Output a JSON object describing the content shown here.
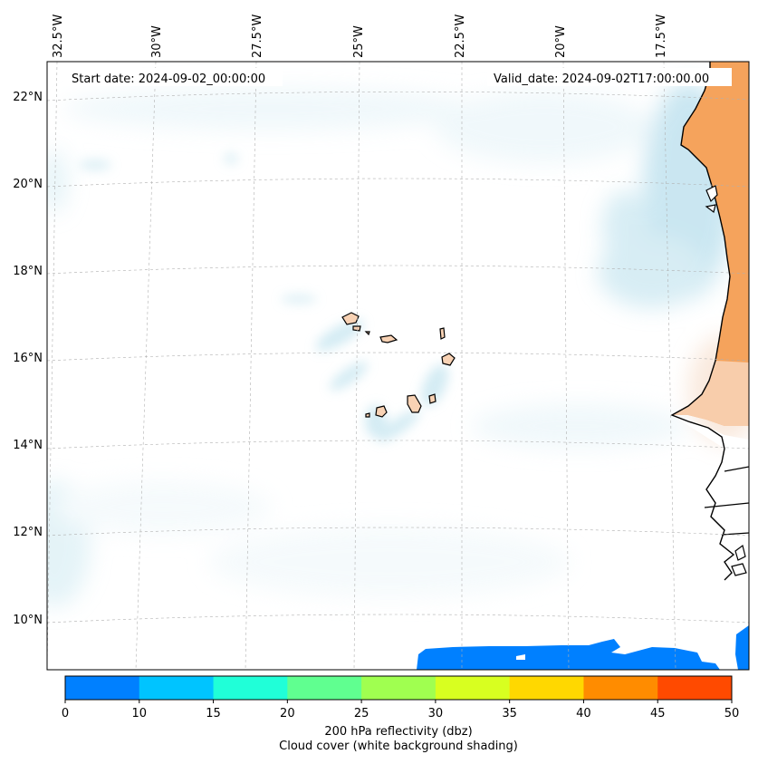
{
  "map": {
    "start_label": "Start date: 2024-09-02_00:00:00",
    "valid_label": "Valid_date: 2024-09-02T17:00:00.00",
    "lon_labels": [
      "32.5°W",
      "30°W",
      "27.5°W",
      "25°W",
      "22.5°W",
      "20°W",
      "17.5°W"
    ],
    "lat_labels": [
      "22°N",
      "20°N",
      "18°N",
      "16°N",
      "14°N",
      "12°N",
      "10°N"
    ],
    "grid": true,
    "colors": {
      "land_fill": "#f5a35c",
      "land_light": "#f8d2b4",
      "cloud": "#a9d9e8",
      "reflectivity_low": "#0080ff"
    }
  },
  "colorbar": {
    "ticks": [
      "0",
      "10",
      "15",
      "20",
      "25",
      "30",
      "35",
      "40",
      "45",
      "50"
    ],
    "colors": [
      "#0080ff",
      "#00c4ff",
      "#20ffd8",
      "#60ff90",
      "#a0ff50",
      "#d8ff20",
      "#ffd800",
      "#ff8c00",
      "#ff4a00"
    ],
    "label_line1": "200 hPa reflectivity (dbz)",
    "label_line2": "Cloud cover (white background shading)"
  }
}
